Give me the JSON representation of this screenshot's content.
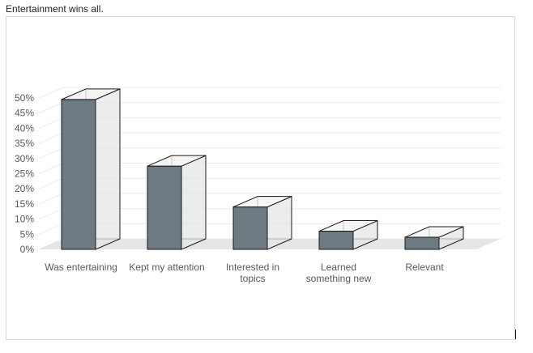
{
  "caption": "Entertainment wins all.",
  "chart_data": {
    "type": "bar",
    "style": "3d-column",
    "categories": [
      [
        "Was entertaining"
      ],
      [
        "Kept my attention"
      ],
      [
        "Interested in",
        "topics"
      ],
      [
        "Learned",
        "something new"
      ],
      [
        "Relevant"
      ]
    ],
    "values": [
      0.495,
      0.275,
      0.14,
      0.06,
      0.04
    ],
    "ylim": [
      0,
      0.5
    ],
    "yticks": [
      "0%",
      "5%",
      "10%",
      "15%",
      "20%",
      "25%",
      "30%",
      "35%",
      "40%",
      "45%",
      "50%"
    ],
    "grid": true,
    "legend": "none",
    "colors": {
      "front": "#6d7a82",
      "side": "#e4e6e7",
      "top": "#f2f3f4",
      "edge": "#1a1a1a",
      "floor": "#e6e6e6",
      "grid": "#ececec"
    }
  }
}
